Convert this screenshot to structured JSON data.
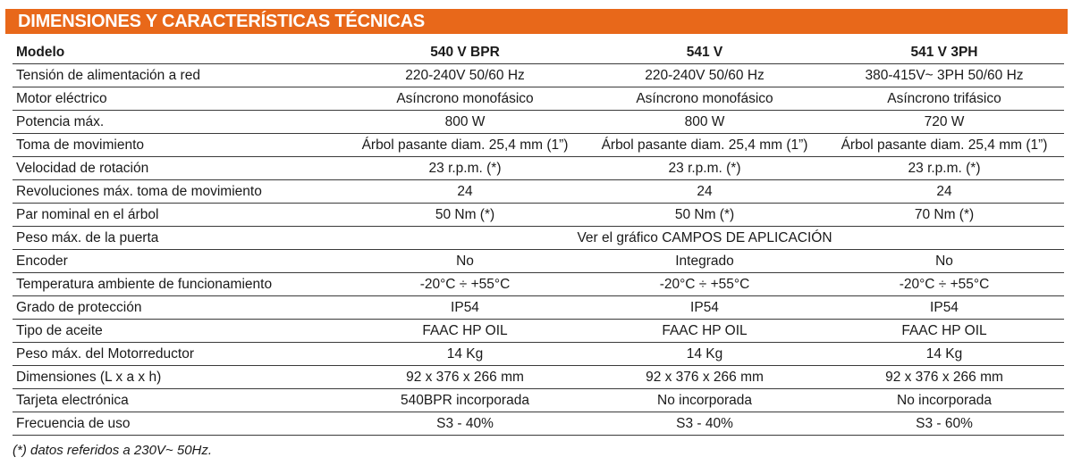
{
  "title": "DIMENSIONES Y CARACTERÍSTICAS TÉCNICAS",
  "columns": [
    "Modelo",
    "540 V BPR",
    "541 V",
    "541 V 3PH"
  ],
  "rows": [
    {
      "label": "Tensión de alimentación a red",
      "values": [
        "220-240V 50/60 Hz",
        "220-240V 50/60 Hz",
        "380-415V~ 3PH 50/60 Hz"
      ]
    },
    {
      "label": "Motor eléctrico",
      "values": [
        "Asíncrono monofásico",
        "Asíncrono monofásico",
        "Asíncrono trifásico"
      ]
    },
    {
      "label": "Potencia máx.",
      "values": [
        "800 W",
        "800 W",
        "720 W"
      ]
    },
    {
      "label": "Toma de movimiento",
      "values": [
        "Árbol pasante diam. 25,4 mm (1”)",
        "Árbol pasante diam. 25,4 mm (1”)",
        "Árbol pasante diam. 25,4 mm (1”)"
      ]
    },
    {
      "label": "Velocidad de rotación",
      "values": [
        "23 r.p.m. (*)",
        "23 r.p.m. (*)",
        "23 r.p.m. (*)"
      ]
    },
    {
      "label": "Revoluciones máx. toma de movimiento",
      "values": [
        "24",
        "24",
        "24"
      ]
    },
    {
      "label": "Par nominal en el árbol",
      "values": [
        "50 Nm (*)",
        "50 Nm (*)",
        "70 Nm (*)"
      ]
    },
    {
      "label": "Peso máx. de la puerta",
      "span_value": "Ver el gráfico CAMPOS DE APLICACIÓN"
    },
    {
      "label": "Encoder",
      "values": [
        "No",
        "Integrado",
        "No"
      ]
    },
    {
      "label": "Temperatura ambiente de funcionamiento",
      "values": [
        "-20°C ÷ +55°C",
        "-20°C ÷ +55°C",
        "-20°C ÷ +55°C"
      ]
    },
    {
      "label": "Grado de protección",
      "values": [
        "IP54",
        "IP54",
        "IP54"
      ]
    },
    {
      "label": "Tipo de aceite",
      "values": [
        "FAAC HP OIL",
        "FAAC HP OIL",
        "FAAC HP OIL"
      ]
    },
    {
      "label": "Peso máx. del Motorreductor",
      "values": [
        "14 Kg",
        "14 Kg",
        "14 Kg"
      ]
    },
    {
      "label": "Dimensiones (L x a x h)",
      "values": [
        "92 x 376 x 266 mm",
        "92 x 376 x 266 mm",
        "92 x 376 x 266 mm"
      ]
    },
    {
      "label": "Tarjeta electrónica",
      "values": [
        "540BPR incorporada",
        "No incorporada",
        "No incorporada"
      ]
    },
    {
      "label": "Frecuencia de uso",
      "values": [
        "S3 - 40%",
        "S3 - 40%",
        "S3 - 60%"
      ]
    }
  ],
  "footnote": "(*) datos referidos a 230V~ 50Hz.",
  "colors": {
    "header_bg": "#e8681a",
    "header_text": "#ffffff",
    "rule": "#3a3a3a"
  }
}
